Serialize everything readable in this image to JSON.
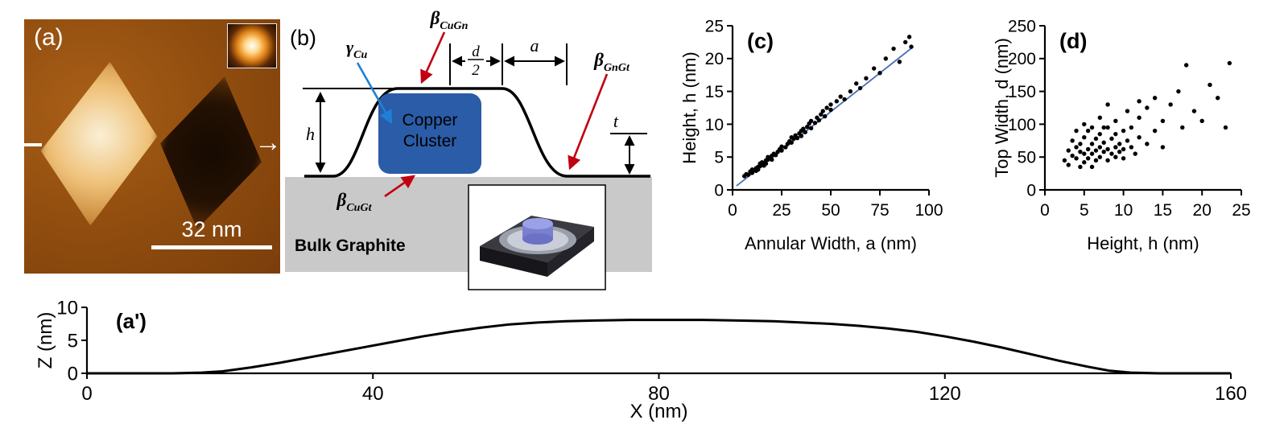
{
  "panel_a": {
    "label": "(a)",
    "scale_bar_label": "32 nm"
  },
  "panel_b": {
    "label": "(b)",
    "gamma": {
      "symbol": "γ",
      "sub": "Cu",
      "color": "#1e7fd6"
    },
    "beta_cugn": {
      "symbol": "β",
      "sub": "CuGn",
      "color": "#c00010"
    },
    "beta_gngt": {
      "symbol": "β",
      "sub": "GnGt",
      "color": "#c00010"
    },
    "beta_cugt": {
      "symbol": "β",
      "sub": "CuGt",
      "color": "#c00010"
    },
    "cluster_line1": "Copper",
    "cluster_line2": "Cluster",
    "cluster_color": "#2b5ca8",
    "substrate": "Bulk Graphite",
    "substrate_color": "#c9c9c9",
    "dims": {
      "h": "h",
      "d": "d",
      "two": "2",
      "a": "a",
      "t": "t"
    }
  },
  "chart_data": [
    {
      "id": "c",
      "type": "scatter",
      "title": "(c)",
      "xlabel": "Annular Width, a (nm)",
      "ylabel": "Height, h (nm)",
      "xlim": [
        0,
        100
      ],
      "ylim": [
        0,
        25
      ],
      "xticks": [
        0,
        25,
        50,
        75,
        100
      ],
      "yticks": [
        0,
        5,
        10,
        15,
        20,
        25
      ],
      "grid": false,
      "point_color": "#000000",
      "fit_line": {
        "x1": 2,
        "y1": 0.6,
        "x2": 92,
        "y2": 21.8,
        "color": "#4a6fb5"
      },
      "points": [
        [
          6,
          2.1
        ],
        [
          7,
          2.4
        ],
        [
          8,
          2.3
        ],
        [
          9,
          2.8
        ],
        [
          10,
          2.6
        ],
        [
          10,
          3.1
        ],
        [
          11,
          3.0
        ],
        [
          12,
          3.3
        ],
        [
          12,
          2.9
        ],
        [
          13,
          3.5
        ],
        [
          13,
          3.1
        ],
        [
          14,
          3.6
        ],
        [
          14,
          4.0
        ],
        [
          15,
          3.8
        ],
        [
          15,
          4.2
        ],
        [
          16,
          4.1
        ],
        [
          16,
          3.7
        ],
        [
          17,
          4.5
        ],
        [
          17,
          4.0
        ],
        [
          18,
          4.6
        ],
        [
          18,
          5.0
        ],
        [
          19,
          4.8
        ],
        [
          20,
          5.2
        ],
        [
          20,
          4.6
        ],
        [
          21,
          5.5
        ],
        [
          22,
          5.3
        ],
        [
          23,
          5.8
        ],
        [
          24,
          6.2
        ],
        [
          25,
          6.0
        ],
        [
          25,
          6.6
        ],
        [
          27,
          6.5
        ],
        [
          28,
          7.0
        ],
        [
          29,
          7.4
        ],
        [
          30,
          7.2
        ],
        [
          30,
          8.0
        ],
        [
          31,
          7.8
        ],
        [
          32,
          8.3
        ],
        [
          33,
          7.9
        ],
        [
          34,
          8.6
        ],
        [
          35,
          8.2
        ],
        [
          35,
          9.0
        ],
        [
          36,
          9.3
        ],
        [
          37,
          8.8
        ],
        [
          38,
          9.6
        ],
        [
          39,
          10.1
        ],
        [
          40,
          9.4
        ],
        [
          40,
          10.5
        ],
        [
          42,
          10.2
        ],
        [
          43,
          11.0
        ],
        [
          44,
          10.6
        ],
        [
          45,
          11.5
        ],
        [
          46,
          12.0
        ],
        [
          47,
          11.2
        ],
        [
          48,
          12.5
        ],
        [
          50,
          13.0
        ],
        [
          50,
          12.2
        ],
        [
          53,
          13.5
        ],
        [
          55,
          14.2
        ],
        [
          57,
          13.8
        ],
        [
          60,
          15.0
        ],
        [
          63,
          16.2
        ],
        [
          65,
          15.5
        ],
        [
          68,
          17.0
        ],
        [
          72,
          18.5
        ],
        [
          75,
          17.8
        ],
        [
          78,
          20.0
        ],
        [
          82,
          21.5
        ],
        [
          85,
          19.5
        ],
        [
          88,
          22.5
        ],
        [
          90,
          23.3
        ],
        [
          91,
          21.8
        ]
      ]
    },
    {
      "id": "d",
      "type": "scatter",
      "title": "(d)",
      "xlabel": "Height, h (nm)",
      "ylabel": "Top Width, d (nm)",
      "xlim": [
        0,
        25
      ],
      "ylim": [
        0,
        250
      ],
      "xticks": [
        0,
        5,
        10,
        15,
        20,
        25
      ],
      "yticks": [
        0,
        50,
        100,
        150,
        200,
        250
      ],
      "grid": false,
      "point_color": "#000000",
      "points": [
        [
          2.5,
          45
        ],
        [
          3,
          60
        ],
        [
          3,
          38
        ],
        [
          3.5,
          75
        ],
        [
          3.5,
          52
        ],
        [
          4,
          65
        ],
        [
          4,
          48
        ],
        [
          4,
          90
        ],
        [
          4.5,
          58
        ],
        [
          4.5,
          70
        ],
        [
          4.5,
          35
        ],
        [
          5,
          55
        ],
        [
          5,
          42
        ],
        [
          5,
          80
        ],
        [
          5,
          100
        ],
        [
          5.5,
          62
        ],
        [
          5.5,
          48
        ],
        [
          5.5,
          90
        ],
        [
          6,
          70
        ],
        [
          6,
          55
        ],
        [
          6,
          95
        ],
        [
          6,
          35
        ],
        [
          6.5,
          60
        ],
        [
          6.5,
          78
        ],
        [
          6.5,
          45
        ],
        [
          7,
          50
        ],
        [
          7,
          65
        ],
        [
          7,
          110
        ],
        [
          7,
          85
        ],
        [
          7.5,
          58
        ],
        [
          7.5,
          72
        ],
        [
          7.5,
          95
        ],
        [
          8,
          45
        ],
        [
          8,
          62
        ],
        [
          8,
          95
        ],
        [
          8,
          130
        ],
        [
          8.5,
          55
        ],
        [
          8.5,
          78
        ],
        [
          9,
          65
        ],
        [
          9,
          50
        ],
        [
          9,
          105
        ],
        [
          9,
          85
        ],
        [
          9.5,
          70
        ],
        [
          9.5,
          58
        ],
        [
          10,
          62
        ],
        [
          10,
          90
        ],
        [
          10,
          48
        ],
        [
          10.5,
          75
        ],
        [
          10.5,
          120
        ],
        [
          11,
          65
        ],
        [
          11,
          95
        ],
        [
          11.5,
          55
        ],
        [
          12,
          80
        ],
        [
          12,
          110
        ],
        [
          12,
          135
        ],
        [
          13,
          70
        ],
        [
          13,
          125
        ],
        [
          14,
          90
        ],
        [
          14,
          140
        ],
        [
          15,
          105
        ],
        [
          15,
          65
        ],
        [
          16,
          130
        ],
        [
          17,
          150
        ],
        [
          17.5,
          95
        ],
        [
          18,
          190
        ],
        [
          19,
          120
        ],
        [
          20,
          105
        ],
        [
          21,
          160
        ],
        [
          22,
          140
        ],
        [
          23,
          95
        ],
        [
          23.5,
          193
        ]
      ]
    },
    {
      "id": "aprime",
      "type": "line",
      "title": "(a')",
      "xlabel": "X (nm)",
      "ylabel": "Z (nm)",
      "xlim": [
        0,
        160
      ],
      "ylim": [
        0,
        10
      ],
      "xticks": [
        0,
        40,
        80,
        120,
        160
      ],
      "yticks": [
        0,
        5,
        10
      ],
      "grid": false,
      "line_color": "#000000",
      "points": [
        [
          0,
          0
        ],
        [
          6,
          0
        ],
        [
          12,
          0
        ],
        [
          16,
          0.1
        ],
        [
          19,
          0.3
        ],
        [
          23,
          0.9
        ],
        [
          27,
          1.6
        ],
        [
          31,
          2.4
        ],
        [
          35,
          3.2
        ],
        [
          39,
          4.0
        ],
        [
          43,
          4.8
        ],
        [
          47,
          5.6
        ],
        [
          51,
          6.3
        ],
        [
          55,
          6.9
        ],
        [
          59,
          7.4
        ],
        [
          63,
          7.7
        ],
        [
          67,
          7.9
        ],
        [
          71,
          8.0
        ],
        [
          76,
          8.1
        ],
        [
          81,
          8.1
        ],
        [
          86,
          8.1
        ],
        [
          91,
          8.0
        ],
        [
          96,
          7.9
        ],
        [
          100,
          7.7
        ],
        [
          104,
          7.5
        ],
        [
          108,
          7.2
        ],
        [
          112,
          6.8
        ],
        [
          116,
          6.3
        ],
        [
          120,
          5.6
        ],
        [
          124,
          4.8
        ],
        [
          128,
          3.9
        ],
        [
          132,
          2.9
        ],
        [
          136,
          1.9
        ],
        [
          140,
          1.0
        ],
        [
          143,
          0.4
        ],
        [
          146,
          0.1
        ],
        [
          150,
          0
        ],
        [
          155,
          0
        ],
        [
          160,
          0
        ]
      ]
    }
  ]
}
